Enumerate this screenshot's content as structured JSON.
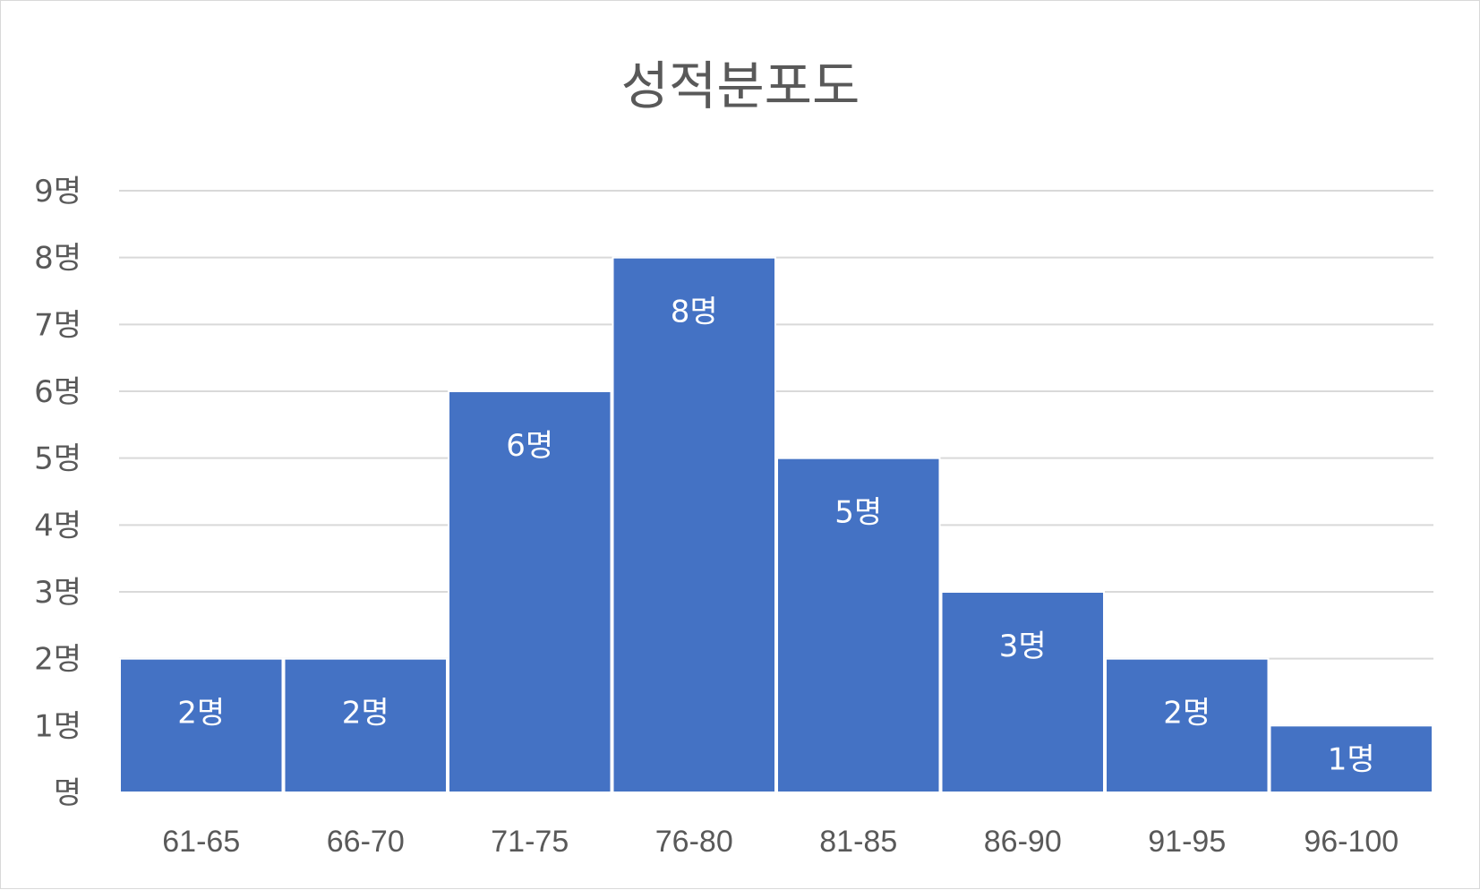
{
  "chart_data": {
    "type": "bar",
    "title": "성적분포도",
    "xlabel": "",
    "ylabel": "",
    "categories": [
      "61-65",
      "66-70",
      "71-75",
      "76-80",
      "81-85",
      "86-90",
      "91-95",
      "96-100"
    ],
    "values": [
      2,
      2,
      6,
      8,
      5,
      3,
      2,
      1
    ],
    "data_labels": [
      "2명",
      "2명",
      "6명",
      "8명",
      "5명",
      "3명",
      "2명",
      "1명"
    ],
    "ylim": [
      0,
      9
    ],
    "y_ticks": [
      "명",
      "1명",
      "2명",
      "3명",
      "4명",
      "5명",
      "6명",
      "7명",
      "8명",
      "9명"
    ],
    "grid": true,
    "legend": "none",
    "colors": {
      "bar": "#4472c4",
      "grid": "#d9d9d9",
      "axis": "#d9d9d9",
      "text": "#595959",
      "label": "#ffffff"
    }
  }
}
